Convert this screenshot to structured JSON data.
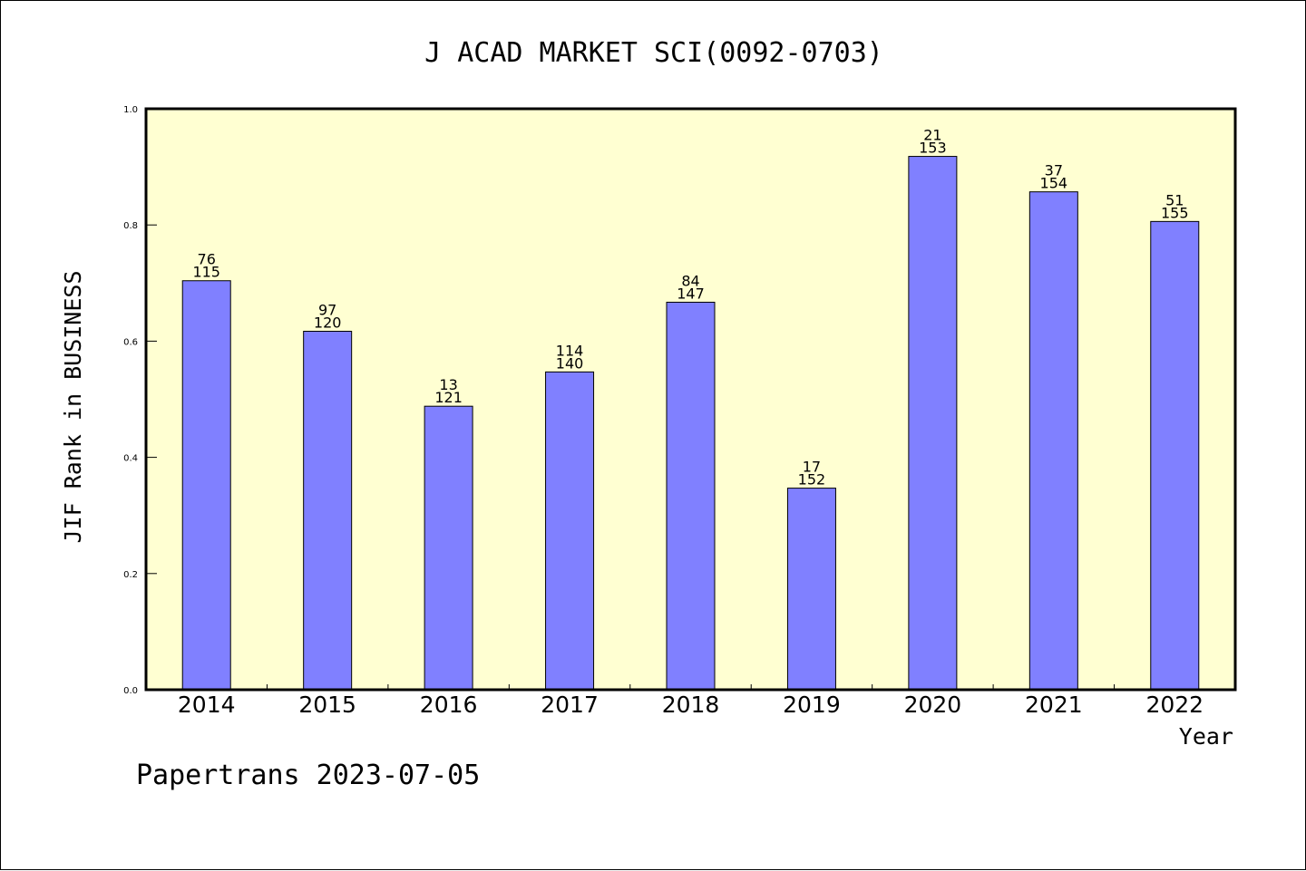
{
  "chart_data": {
    "type": "bar",
    "title": "J ACAD MARKET SCI(0092-0703)",
    "xlabel": "Year",
    "ylabel": "JIF Rank in BUSINESS",
    "footer": "Papertrans 2023-07-05",
    "categories": [
      "2014",
      "2015",
      "2016",
      "2017",
      "2018",
      "2019",
      "2020",
      "2021",
      "2022"
    ],
    "values": [
      0.704,
      0.617,
      0.488,
      0.547,
      0.667,
      0.347,
      0.918,
      0.857,
      0.806
    ],
    "labels_top": [
      "76",
      "97",
      "13",
      "114",
      "84",
      "17",
      "21",
      "37",
      "51"
    ],
    "labels_bottom": [
      "115",
      "120",
      "121",
      "140",
      "147",
      "152",
      "153",
      "154",
      "155"
    ],
    "ylim": [
      0,
      1.0
    ],
    "yticks": [
      "0.0",
      "0.2",
      "0.4",
      "0.6",
      "0.8",
      "1.0"
    ],
    "grid": false,
    "colors": {
      "plot_background": "#ffffd2",
      "bar_fill": "#8080ff",
      "bar_edge": "#000000"
    }
  }
}
